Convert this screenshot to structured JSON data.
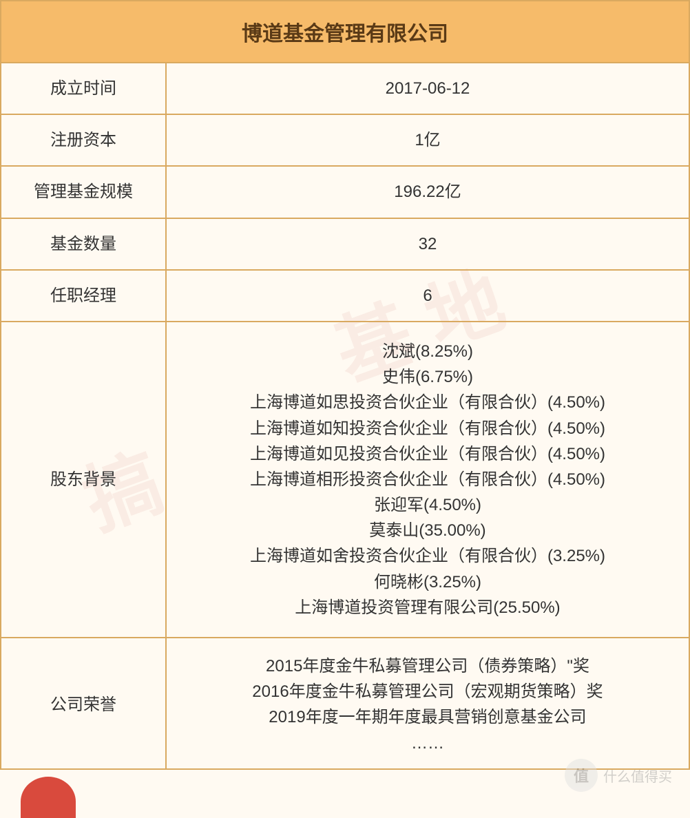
{
  "table": {
    "title": "博道基金管理有限公司",
    "header_bg": "#f6bb6a",
    "header_color": "#5a3a16",
    "border_color": "#d9a960",
    "background_color": "#fffaf2",
    "title_fontsize": 30,
    "cell_fontsize": 24,
    "label_col_width_pct": 24,
    "value_col_width_pct": 76,
    "rows": [
      {
        "label": "成立时间",
        "value": "2017-06-12"
      },
      {
        "label": "注册资本",
        "value": "1亿"
      },
      {
        "label": "管理基金规模",
        "value": "196.22亿"
      },
      {
        "label": "基金数量",
        "value": "32"
      },
      {
        "label": "任职经理",
        "value": "6"
      },
      {
        "label": "股东背景",
        "value": "沈斌(8.25%)\n史伟(6.75%)\n上海博道如思投资合伙企业（有限合伙）(4.50%)\n上海博道如知投资合伙企业（有限合伙）(4.50%)\n上海博道如见投资合伙企业（有限合伙）(4.50%)\n上海博道相形投资合伙企业（有限合伙）(4.50%)\n张迎军(4.50%)\n莫泰山(35.00%)\n上海博道如舍投资合伙企业（有限合伙）(3.25%)\n何晓彬(3.25%)\n上海博道投资管理有限公司(25.50%)",
        "multiline": true,
        "rowclass": "row-shareholder"
      },
      {
        "label": "公司荣誉",
        "value": "2015年度金牛私募管理公司（债券策略）\"奖\n2016年度金牛私募管理公司（宏观期货策略）奖\n2019年度一年期年度最具营销创意基金公司\n……",
        "multiline": true,
        "rowclass": "row-honor"
      }
    ]
  },
  "watermark": {
    "text1": "基地",
    "text2": "搞",
    "color": "rgba(184,51,51,0.07)",
    "fontsize": 110,
    "rotation_deg": -20
  },
  "badge": {
    "circle_text": "值",
    "label": "什么值得买"
  }
}
